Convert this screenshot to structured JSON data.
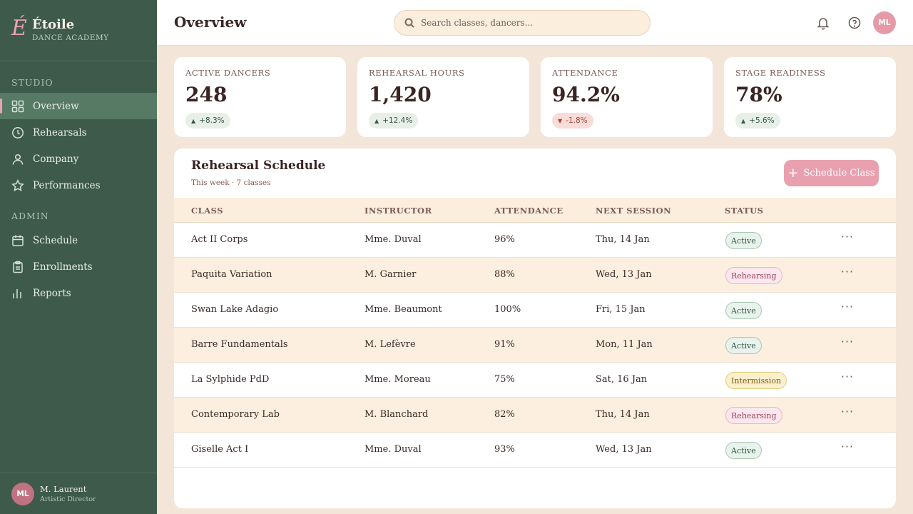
{
  "brand": {
    "mark": "É",
    "name": "Étoile",
    "subtitle": "DANCE ACADEMY"
  },
  "sidebar": {
    "sections": [
      {
        "label": "STUDIO"
      },
      {
        "label": "ADMIN"
      }
    ],
    "items": [
      {
        "label": "Overview",
        "icon": "grid-icon"
      },
      {
        "label": "Rehearsals",
        "icon": "clock-icon"
      },
      {
        "label": "Company",
        "icon": "user-icon"
      },
      {
        "label": "Performances",
        "icon": "star-icon"
      },
      {
        "label": "Schedule",
        "icon": "calendar-icon"
      },
      {
        "label": "Enrollments",
        "icon": "clipboard-icon"
      },
      {
        "label": "Reports",
        "icon": "bar-chart-icon"
      }
    ],
    "footer": {
      "initials": "ML",
      "name": "M. Laurent",
      "role": "Artistic Director"
    }
  },
  "header": {
    "title": "Overview",
    "search_placeholder": "Search classes, dancers...",
    "avatar_initials": "ML"
  },
  "stats": [
    {
      "label": "ACTIVE DANCERS",
      "value": "248",
      "delta": "+8.3%",
      "direction": "up"
    },
    {
      "label": "REHEARSAL HOURS",
      "value": "1,420",
      "delta": "+12.4%",
      "direction": "up"
    },
    {
      "label": "ATTENDANCE",
      "value": "94.2%",
      "delta": "-1.8%",
      "direction": "down"
    },
    {
      "label": "STAGE READINESS",
      "value": "78%",
      "delta": "+5.6%",
      "direction": "up"
    }
  ],
  "schedule": {
    "title": "Rehearsal Schedule",
    "subtitle": "This week · 7 classes",
    "button_label": "Schedule Class",
    "columns": [
      "CLASS",
      "INSTRUCTOR",
      "ATTENDANCE",
      "NEXT SESSION",
      "STATUS"
    ],
    "rows": [
      {
        "class": "Act II Corps",
        "instructor": "Mme. Duval",
        "attendance": "96%",
        "next": "Thu, 14 Jan",
        "status": "Active"
      },
      {
        "class": "Paquita Variation",
        "instructor": "M. Garnier",
        "attendance": "88%",
        "next": "Wed, 13 Jan",
        "status": "Rehearsing"
      },
      {
        "class": "Swan Lake Adagio",
        "instructor": "Mme. Beaumont",
        "attendance": "100%",
        "next": "Fri, 15 Jan",
        "status": "Active"
      },
      {
        "class": "Barre Fundamentals",
        "instructor": "M. Lefèvre",
        "attendance": "91%",
        "next": "Mon, 11 Jan",
        "status": "Active"
      },
      {
        "class": "La Sylphide PdD",
        "instructor": "Mme. Moreau",
        "attendance": "75%",
        "next": "Sat, 16 Jan",
        "status": "Intermission"
      },
      {
        "class": "Contemporary Lab",
        "instructor": "M. Blanchard",
        "attendance": "82%",
        "next": "Thu, 14 Jan",
        "status": "Rehearsing"
      },
      {
        "class": "Giselle Act I",
        "instructor": "Mme. Duval",
        "attendance": "93%",
        "next": "Wed, 13 Jan",
        "status": "Active"
      }
    ]
  },
  "colors": {
    "sidebar": "#3e5a4a",
    "accent_pink": "#e8a0ae",
    "background": "#f3e6d8"
  }
}
